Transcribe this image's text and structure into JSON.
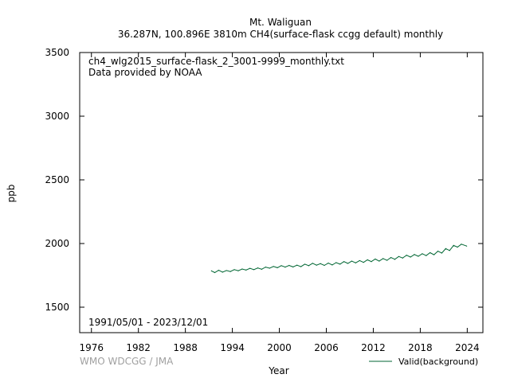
{
  "chart_data": {
    "type": "line",
    "title": "Mt. Waliguan",
    "subtitle": "36.287N, 100.896E 3810m    CH4(surface-flask ccgg default) monthly",
    "file_label": "ch4_wlg2015_surface-flask_2_3001-9999_monthly.txt",
    "provider_label": "Data provided by NOAA",
    "date_range_label": "1991/05/01 - 2023/12/01",
    "credit": "WMO WDCGG / JMA",
    "xlabel": "Year",
    "ylabel": "ppb",
    "xlim": [
      1974.5,
      2026
    ],
    "ylim": [
      1300,
      3500
    ],
    "xticks": [
      1976,
      1982,
      1988,
      1994,
      2000,
      2006,
      2012,
      2018,
      2024
    ],
    "yticks": [
      1500,
      2000,
      2500,
      3000,
      3500
    ],
    "grid": false,
    "legend_position": "bottom-right",
    "series": [
      {
        "name": "Valid(background)",
        "color": "#006633",
        "x": [
          1991.33,
          1991.75,
          1992.25,
          1992.75,
          1993.25,
          1993.75,
          1994.25,
          1994.75,
          1995.25,
          1995.75,
          1996.25,
          1996.75,
          1997.25,
          1997.75,
          1998.25,
          1998.75,
          1999.25,
          1999.75,
          2000.25,
          2000.75,
          2001.25,
          2001.75,
          2002.25,
          2002.75,
          2003.25,
          2003.75,
          2004.25,
          2004.75,
          2005.25,
          2005.75,
          2006.25,
          2006.75,
          2007.25,
          2007.75,
          2008.25,
          2008.75,
          2009.25,
          2009.75,
          2010.25,
          2010.75,
          2011.25,
          2011.75,
          2012.25,
          2012.75,
          2013.25,
          2013.75,
          2014.25,
          2014.75,
          2015.25,
          2015.75,
          2016.25,
          2016.75,
          2017.25,
          2017.75,
          2018.25,
          2018.75,
          2019.25,
          2019.75,
          2020.25,
          2020.75,
          2021.25,
          2021.75,
          2022.25,
          2022.75,
          2023.25,
          2023.92
        ],
        "values": [
          1785,
          1772,
          1790,
          1775,
          1788,
          1780,
          1795,
          1786,
          1800,
          1792,
          1805,
          1795,
          1808,
          1798,
          1815,
          1806,
          1820,
          1810,
          1826,
          1815,
          1828,
          1816,
          1830,
          1818,
          1838,
          1826,
          1845,
          1830,
          1842,
          1828,
          1846,
          1832,
          1850,
          1838,
          1858,
          1844,
          1862,
          1848,
          1866,
          1852,
          1872,
          1858,
          1878,
          1862,
          1882,
          1868,
          1890,
          1876,
          1898,
          1886,
          1908,
          1894,
          1914,
          1900,
          1920,
          1905,
          1928,
          1912,
          1940,
          1925,
          1960,
          1945,
          1985,
          1972,
          1995,
          1980
        ]
      }
    ]
  }
}
